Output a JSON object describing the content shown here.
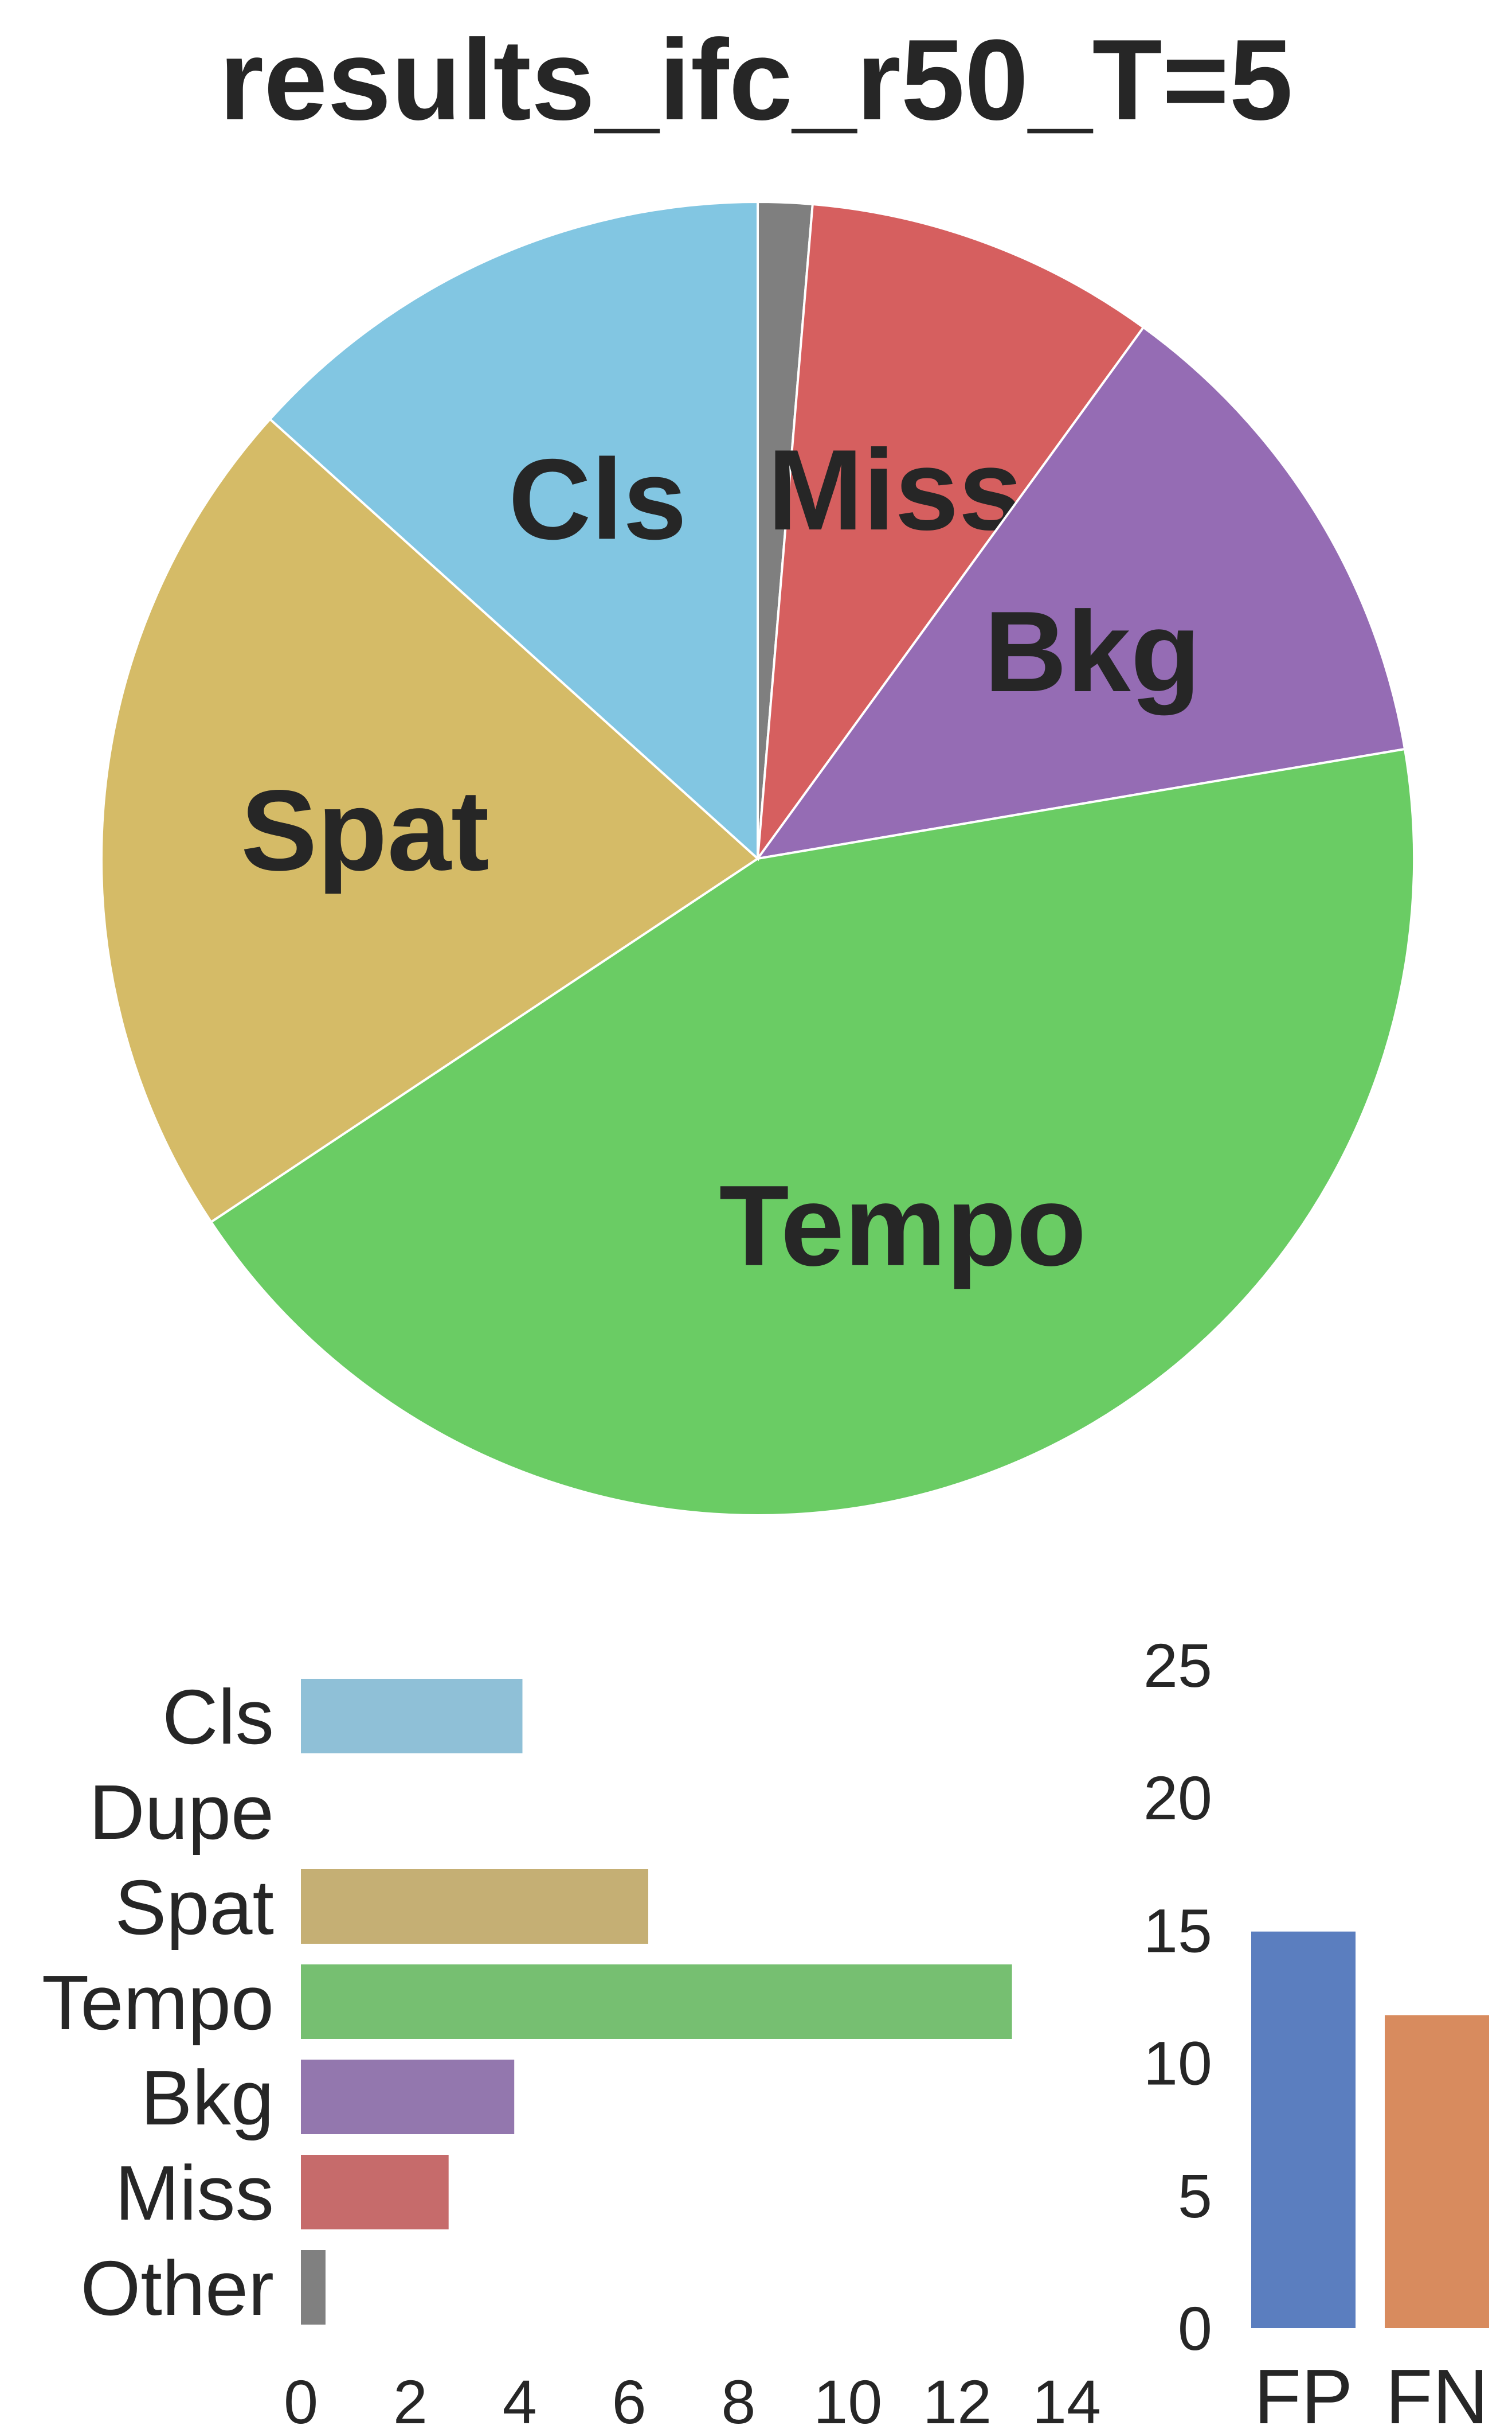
{
  "chart_data": [
    {
      "type": "pie",
      "title": "results_ifc_r50_T=5",
      "start_angle_deg": 90,
      "direction": "clockwise",
      "slices": [
        {
          "label": "",
          "value": 0.4,
          "color": "#7f7f7f"
        },
        {
          "label": "Miss",
          "value": 2.6,
          "color": "#d65f5f"
        },
        {
          "label": "Bkg",
          "value": 3.7,
          "color": "#956cb4"
        },
        {
          "label": "Tempo",
          "value": 13.0,
          "color": "#6acc64"
        },
        {
          "label": "Spat",
          "value": 6.3,
          "color": "#d5bb67"
        },
        {
          "label": "Cls",
          "value": 4.0,
          "color": "#82c6e2"
        }
      ]
    },
    {
      "type": "bar",
      "orientation": "horizontal",
      "categories": [
        "Cls",
        "Dupe",
        "Spat",
        "Tempo",
        "Bkg",
        "Miss",
        "Other"
      ],
      "values": [
        4.05,
        0,
        6.35,
        13.0,
        3.9,
        2.7,
        0.45
      ],
      "colors": [
        "#8fc0d7",
        "#8fc0d7",
        "#c5af74",
        "#76bf71",
        "#9377ae",
        "#c66b6b",
        "#808080"
      ],
      "xlim": [
        0,
        14
      ],
      "xticks": [
        0,
        2,
        4,
        6,
        8,
        10,
        12,
        14
      ],
      "grid": false
    },
    {
      "type": "bar",
      "orientation": "vertical",
      "categories": [
        "FP",
        "FN"
      ],
      "values": [
        14.95,
        11.8
      ],
      "colors": [
        "#5b7ebf",
        "#d88b5e"
      ],
      "ylim": [
        0,
        25
      ],
      "yticks": [
        0,
        5,
        10,
        15,
        20,
        25
      ],
      "grid": false
    }
  ]
}
